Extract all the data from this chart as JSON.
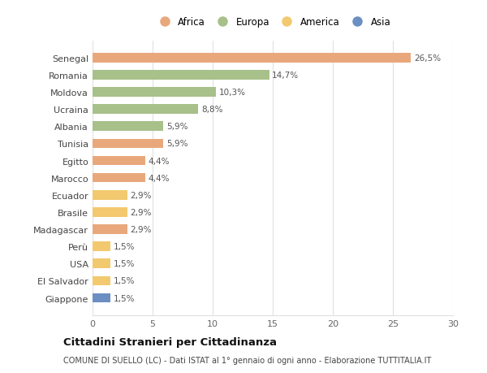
{
  "countries": [
    "Senegal",
    "Romania",
    "Moldova",
    "Ucraina",
    "Albania",
    "Tunisia",
    "Egitto",
    "Marocco",
    "Ecuador",
    "Brasile",
    "Madagascar",
    "Perù",
    "USA",
    "El Salvador",
    "Giappone"
  ],
  "values": [
    26.5,
    14.7,
    10.3,
    8.8,
    5.9,
    5.9,
    4.4,
    4.4,
    2.9,
    2.9,
    2.9,
    1.5,
    1.5,
    1.5,
    1.5
  ],
  "labels": [
    "26,5%",
    "14,7%",
    "10,3%",
    "8,8%",
    "5,9%",
    "5,9%",
    "4,4%",
    "4,4%",
    "2,9%",
    "2,9%",
    "2,9%",
    "1,5%",
    "1,5%",
    "1,5%",
    "1,5%"
  ],
  "continent": [
    "Africa",
    "Europa",
    "Europa",
    "Europa",
    "Europa",
    "Africa",
    "Africa",
    "Africa",
    "America",
    "America",
    "Africa",
    "America",
    "America",
    "America",
    "Asia"
  ],
  "colors": {
    "Africa": "#E8A87C",
    "Europa": "#A8C08A",
    "America": "#F2C96E",
    "Asia": "#6B8FC2"
  },
  "legend_order": [
    "Africa",
    "Europa",
    "America",
    "Asia"
  ],
  "title": "Cittadini Stranieri per Cittadinanza",
  "subtitle": "COMUNE DI SUELLO (LC) - Dati ISTAT al 1° gennaio di ogni anno - Elaborazione TUTTITALIA.IT",
  "xlim": [
    0,
    30
  ],
  "xticks": [
    0,
    5,
    10,
    15,
    20,
    25,
    30
  ],
  "background_color": "#ffffff",
  "grid_color": "#e0e0e0"
}
